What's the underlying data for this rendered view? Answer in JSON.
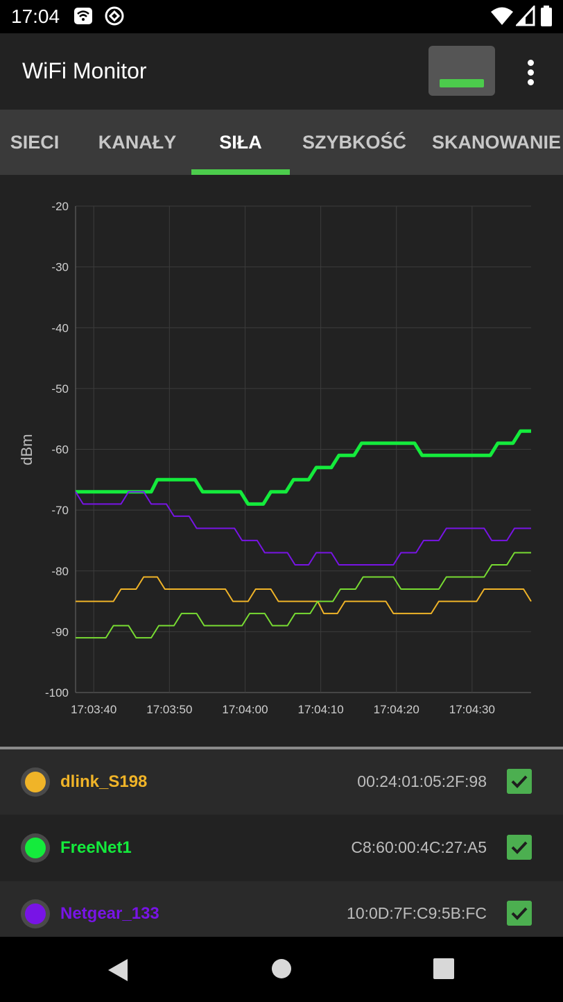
{
  "status_bar": {
    "time": "17:04",
    "icons": [
      "wifi-notification-icon",
      "vpn-icon",
      "wifi-signal-icon",
      "cell-signal-icon",
      "battery-icon"
    ]
  },
  "app_bar": {
    "title": "WiFi Monitor",
    "action_icon": "signal-strength-toggle-icon",
    "overflow_icon": "more-vert-icon"
  },
  "tabs": [
    {
      "label": "SIECI",
      "active": false
    },
    {
      "label": "KANAŁY",
      "active": false
    },
    {
      "label": "SIŁA",
      "active": true
    },
    {
      "label": "SZYBKOŚĆ",
      "active": false
    },
    {
      "label": "SKANOWANIE",
      "active": false
    }
  ],
  "chart_data": {
    "type": "line",
    "ylabel": "dBm",
    "xlabel": "",
    "ylim": [
      -100,
      -20
    ],
    "yticks": [
      "-20",
      "-30",
      "-40",
      "-50",
      "-60",
      "-70",
      "-80",
      "-90",
      "-100"
    ],
    "xlim": [
      37.6,
      97.8
    ],
    "xticks": [
      {
        "v": 40,
        "label": "17:03:40"
      },
      {
        "v": 50,
        "label": "17:03:50"
      },
      {
        "v": 60,
        "label": "17:04:00"
      },
      {
        "v": 70,
        "label": "17:04:10"
      },
      {
        "v": 80,
        "label": "17:04:20"
      },
      {
        "v": 90,
        "label": "17:04:30"
      }
    ],
    "grid": true,
    "series": [
      {
        "name": "dlink_S198",
        "color": "#f0b428",
        "width": 2,
        "points": [
          [
            37.6,
            -85
          ],
          [
            42.6,
            -85
          ],
          [
            43.6,
            -83
          ],
          [
            45.6,
            -83
          ],
          [
            46.6,
            -81
          ],
          [
            48.4,
            -81
          ],
          [
            49.4,
            -83
          ],
          [
            57.4,
            -83
          ],
          [
            58.4,
            -85
          ],
          [
            60.4,
            -85
          ],
          [
            61.4,
            -83
          ],
          [
            63.4,
            -83
          ],
          [
            64.4,
            -85
          ],
          [
            69.6,
            -85
          ],
          [
            70.4,
            -87
          ],
          [
            72.2,
            -87
          ],
          [
            73.2,
            -85
          ],
          [
            78.6,
            -85
          ],
          [
            79.6,
            -87
          ],
          [
            84.6,
            -87
          ],
          [
            85.6,
            -85
          ],
          [
            90.6,
            -85
          ],
          [
            91.6,
            -83
          ],
          [
            96.8,
            -83
          ],
          [
            97.8,
            -85
          ]
        ]
      },
      {
        "name": "FreeNet1",
        "color": "#14eb3c",
        "width": 5,
        "points": [
          [
            37.6,
            -67
          ],
          [
            47.6,
            -67
          ],
          [
            48.4,
            -65
          ],
          [
            53.4,
            -65
          ],
          [
            54.4,
            -67
          ],
          [
            59.4,
            -67
          ],
          [
            60.4,
            -69
          ],
          [
            62.4,
            -69
          ],
          [
            63.4,
            -67
          ],
          [
            65.4,
            -67
          ],
          [
            66.4,
            -65
          ],
          [
            68.4,
            -65
          ],
          [
            69.4,
            -63
          ],
          [
            71.4,
            -63
          ],
          [
            72.4,
            -61
          ],
          [
            74.4,
            -61
          ],
          [
            75.4,
            -59
          ],
          [
            82.4,
            -59
          ],
          [
            83.4,
            -61
          ],
          [
            92.4,
            -61
          ],
          [
            93.4,
            -59
          ],
          [
            95.4,
            -59
          ],
          [
            96.4,
            -57
          ],
          [
            97.8,
            -57
          ]
        ]
      },
      {
        "name": "Netgear_133",
        "color": "#7814e6",
        "width": 2,
        "points": [
          [
            37.6,
            -67
          ],
          [
            38.6,
            -69
          ],
          [
            43.6,
            -69
          ],
          [
            44.6,
            -67
          ],
          [
            46.6,
            -67
          ],
          [
            47.6,
            -69
          ],
          [
            49.6,
            -69
          ],
          [
            50.6,
            -71
          ],
          [
            52.6,
            -71
          ],
          [
            53.6,
            -73
          ],
          [
            58.6,
            -73
          ],
          [
            59.6,
            -75
          ],
          [
            61.6,
            -75
          ],
          [
            62.6,
            -77
          ],
          [
            65.6,
            -77
          ],
          [
            66.6,
            -79
          ],
          [
            68.4,
            -79
          ],
          [
            69.4,
            -77
          ],
          [
            71.4,
            -77
          ],
          [
            72.4,
            -79
          ],
          [
            79.6,
            -79
          ],
          [
            80.6,
            -77
          ],
          [
            82.6,
            -77
          ],
          [
            83.6,
            -75
          ],
          [
            85.6,
            -75
          ],
          [
            86.6,
            -73
          ],
          [
            91.6,
            -73
          ],
          [
            92.6,
            -75
          ],
          [
            94.6,
            -75
          ],
          [
            95.6,
            -73
          ],
          [
            97.8,
            -73
          ]
        ]
      },
      {
        "name": "",
        "color": "#78dc32",
        "width": 2,
        "points": [
          [
            37.6,
            -91
          ],
          [
            41.6,
            -91
          ],
          [
            42.6,
            -89
          ],
          [
            44.6,
            -89
          ],
          [
            45.6,
            -91
          ],
          [
            47.6,
            -91
          ],
          [
            48.6,
            -89
          ],
          [
            50.6,
            -89
          ],
          [
            51.6,
            -87
          ],
          [
            53.6,
            -87
          ],
          [
            54.6,
            -89
          ],
          [
            59.6,
            -89
          ],
          [
            60.6,
            -87
          ],
          [
            62.6,
            -87
          ],
          [
            63.6,
            -89
          ],
          [
            65.6,
            -89
          ],
          [
            66.6,
            -87
          ],
          [
            68.6,
            -87
          ],
          [
            69.6,
            -85
          ],
          [
            71.6,
            -85
          ],
          [
            72.6,
            -83
          ],
          [
            74.6,
            -83
          ],
          [
            75.6,
            -81
          ],
          [
            79.6,
            -81
          ],
          [
            80.6,
            -83
          ],
          [
            85.6,
            -83
          ],
          [
            86.6,
            -81
          ],
          [
            91.6,
            -81
          ],
          [
            92.6,
            -79
          ],
          [
            94.6,
            -79
          ],
          [
            95.6,
            -77
          ],
          [
            97.8,
            -77
          ]
        ]
      }
    ]
  },
  "networks": [
    {
      "ssid": "dlink_S198",
      "bssid": "00:24:01:05:2F:98",
      "color": "#f0b428",
      "checked": true
    },
    {
      "ssid": "FreeNet1",
      "bssid": "C8:60:00:4C:27:A5",
      "color": "#14eb3c",
      "checked": true
    },
    {
      "ssid": "Netgear_133",
      "bssid": "10:0D:7F:C9:5B:FC",
      "color": "#7814e6",
      "checked": true
    }
  ],
  "nav_bar": {
    "back_icon": "back-icon",
    "home_icon": "home-icon",
    "recents_icon": "recents-icon"
  }
}
